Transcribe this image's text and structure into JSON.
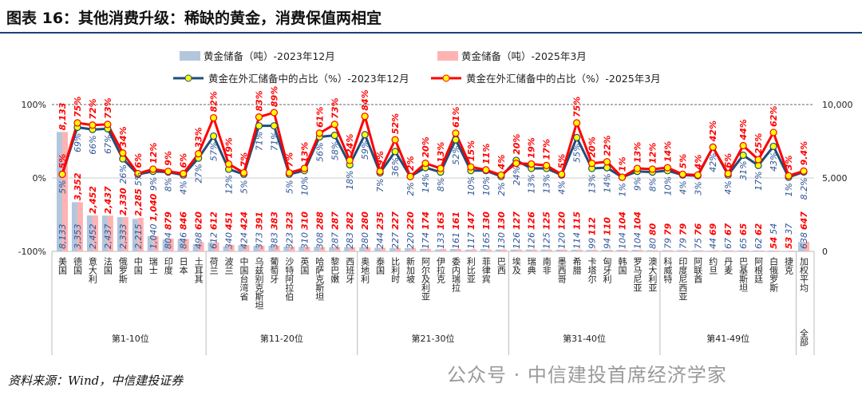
{
  "title": "图表 16：其他消费升级：稀缺的黄金，消费保值两相宜",
  "source": "资料来源：Wind，中信建投证券",
  "watermark": "公众号 · 中信建投首席经济学家",
  "colors": {
    "bar_2023": "#b4c6dc",
    "bar_2025": "#ffb3b3",
    "line_2023": "#1f4e79",
    "line_2025": "#ff0000",
    "marker": "#ffff00"
  },
  "chart_data": {
    "type": "bar+line",
    "title": "",
    "legend_placement": "top",
    "left_axis": {
      "range": [
        -100,
        100
      ],
      "ticks": [
        "-100%",
        "0%",
        "100%"
      ]
    },
    "right_axis": {
      "range": [
        0,
        10000
      ],
      "ticks": [
        "0",
        "5,000",
        "10,000"
      ]
    },
    "categories": [
      "美国",
      "德国",
      "意大利",
      "法国",
      "俄罗斯",
      "中国",
      "瑞士",
      "印度",
      "日本",
      "土耳其",
      "荷兰",
      "波兰",
      "中国台湾省",
      "乌兹别克斯坦",
      "葡萄牙",
      "沙特阿拉伯",
      "英国",
      "哈萨克斯坦",
      "黎巴嫩",
      "西班牙",
      "奥地利",
      "泰国",
      "比利时",
      "新加坡",
      "阿尔及利亚",
      "伊拉克",
      "委内瑞拉",
      "利比亚",
      "菲律宾",
      "巴西",
      "埃及",
      "瑞典",
      "南非",
      "墨西哥",
      "希腊",
      "卡塔尔",
      "匈牙利",
      "韩国",
      "罗马尼亚",
      "澳大利亚",
      "科威特",
      "印度尼西亚",
      "阿联酋",
      "约旦",
      "丹麦",
      "巴基斯坦",
      "阿根廷",
      "白俄罗斯",
      "捷克",
      "加权平均"
    ],
    "groups": [
      {
        "label": "第1-10位",
        "count": 10
      },
      {
        "label": "第11-20位",
        "count": 10
      },
      {
        "label": "第21-30位",
        "count": 10
      },
      {
        "label": "第31-40位",
        "count": 10
      },
      {
        "label": "第41-49位",
        "count": 9
      },
      {
        "label": "全部",
        "count": 1
      }
    ],
    "series": [
      {
        "name": "黄金储备（吨）-2023年12月",
        "type": "bar",
        "axis": "right",
        "values": [
          8133,
          3353,
          2452,
          2437,
          2333,
          2215,
          1040,
          804,
          846,
          498,
          612,
          340,
          424,
          373,
          383,
          323,
          310,
          308,
          287,
          283,
          280,
          244,
          227,
          220,
          174,
          133,
          161,
          117,
          165,
          130,
          126,
          126,
          125,
          120,
          114,
          99,
          94,
          104,
          104,
          80,
          79,
          79,
          75,
          44,
          67,
          65,
          62,
          54,
          37,
          638
        ]
      },
      {
        "name": "黄金储备（吨）-2025年3月",
        "type": "bar",
        "axis": "right",
        "values": [
          8133,
          3352,
          2452,
          2437,
          2330,
          2285,
          1040,
          879,
          846,
          620,
          612,
          451,
          424,
          391,
          383,
          323,
          310,
          288,
          287,
          282,
          280,
          235,
          227,
          220,
          174,
          163,
          161,
          147,
          130,
          130,
          127,
          126,
          125,
          120,
          115,
          112,
          110,
          104,
          104,
          80,
          79,
          79,
          76,
          69,
          67,
          65,
          62,
          54,
          53,
          647
        ]
      },
      {
        "name": "黄金在外汇储备中的占比（%）-2023年12月",
        "type": "line",
        "axis": "left",
        "values": [
          5,
          69,
          66,
          67,
          26,
          5,
          9,
          8,
          4,
          27,
          57,
          12,
          5,
          71,
          71,
          5,
          10,
          56,
          58,
          18,
          59,
          7,
          36,
          2,
          14,
          8,
          52,
          10,
          10,
          2,
          24,
          13,
          13,
          4,
          55,
          13,
          14,
          1,
          9,
          8,
          10,
          4,
          3,
          42,
          4,
          31,
          17,
          43,
          1,
          8.2
        ]
      },
      {
        "name": "黄金在外汇储备中的占比（%）-2025年3月",
        "type": "line",
        "axis": "left",
        "values": [
          5,
          75,
          72,
          73,
          34,
          6,
          12,
          9,
          6,
          33,
          82,
          19,
          7,
          83,
          89,
          7,
          13,
          61,
          73,
          24,
          84,
          9,
          52,
          2,
          20,
          13,
          61,
          15,
          11,
          4,
          20,
          19,
          17,
          5,
          75,
          20,
          22,
          1,
          13,
          12,
          14,
          5,
          4,
          42,
          6,
          44,
          25,
          62,
          3,
          9.4
        ]
      }
    ]
  }
}
